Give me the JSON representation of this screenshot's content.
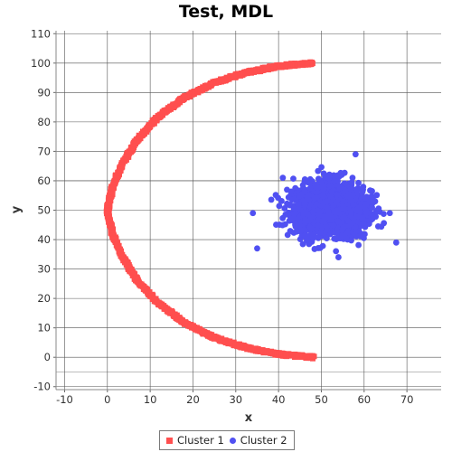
{
  "title": "Test, MDL",
  "colors": {
    "cluster1": "#ff4f4f",
    "cluster2": "#5050f2",
    "grid": "#555555",
    "axis": "#888888"
  },
  "chart_data": {
    "type": "scatter",
    "title": "Test, MDL",
    "xlabel": "x",
    "ylabel": "y",
    "xlim": [
      -12,
      78
    ],
    "ylim": [
      -11,
      111
    ],
    "x_ticks": [
      -10,
      0,
      10,
      20,
      30,
      40,
      50,
      60,
      70
    ],
    "y_ticks": [
      -10,
      0,
      10,
      20,
      30,
      40,
      50,
      60,
      70,
      80,
      90,
      100,
      110
    ],
    "grid": true,
    "legend_position": "bottom-center",
    "series": [
      {
        "name": "Cluster 1",
        "marker": "square",
        "color": "#ff4f4f",
        "shape": "arc",
        "points": [
          [
            48.0,
            100.0
          ],
          [
            40.0,
            99.0
          ],
          [
            32.0,
            96.6
          ],
          [
            25.0,
            93.3
          ],
          [
            18.0,
            88.3
          ],
          [
            12.0,
            81.8
          ],
          [
            7.0,
            74.0
          ],
          [
            3.5,
            65.8
          ],
          [
            1.2,
            58.0
          ],
          [
            0.0,
            50.0
          ],
          [
            1.2,
            42.0
          ],
          [
            3.5,
            34.2
          ],
          [
            7.0,
            26.0
          ],
          [
            12.0,
            18.2
          ],
          [
            18.0,
            11.7
          ],
          [
            25.0,
            6.7
          ],
          [
            32.0,
            3.4
          ],
          [
            40.0,
            1.0
          ],
          [
            48.0,
            0.0
          ]
        ]
      },
      {
        "name": "Cluster 2",
        "marker": "circle",
        "color": "#5050f2",
        "shape": "blob",
        "center": [
          52,
          50
        ],
        "x_range": [
          34,
          68
        ],
        "y_range": [
          34,
          69
        ]
      }
    ]
  },
  "legend": {
    "items": [
      {
        "label": "Cluster 1",
        "color": "#ff4f4f"
      },
      {
        "label": "Cluster 2",
        "color": "#5050f2"
      }
    ]
  }
}
